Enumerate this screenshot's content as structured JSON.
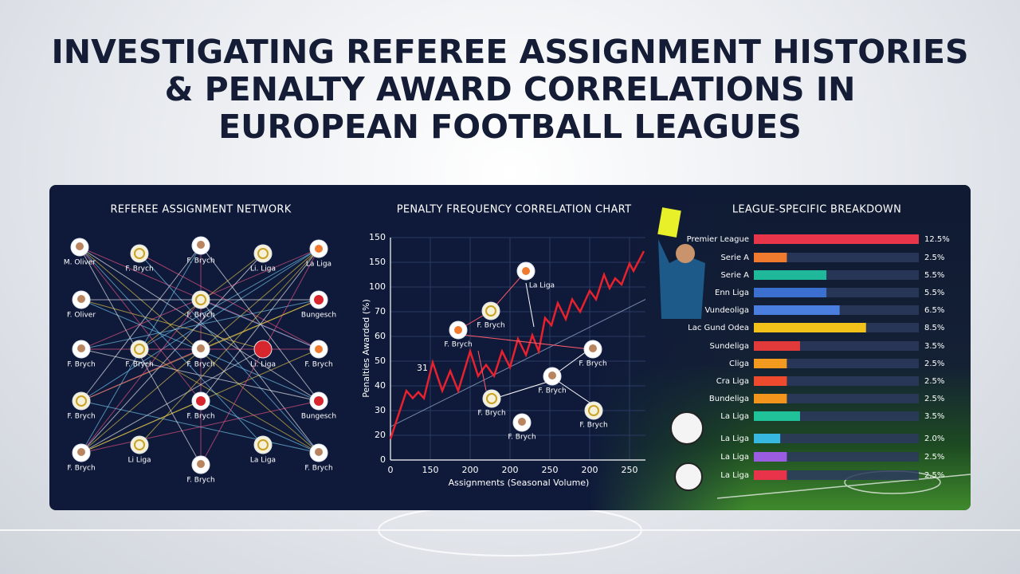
{
  "header": {
    "title": [
      "INVESTIGATING REFEREE ASSIGNMENT HISTORIES",
      "& PENALTY AWARD CORRELATIONS IN",
      "EUROPEAN FOOTBALL LEAGUES"
    ]
  },
  "network": {
    "title": "REFEREE ASSIGNMENT NETWORK",
    "nodes": [
      "M. Oliver",
      "F. Brych",
      "F. Brych",
      "Li. Liga",
      "La Liga",
      "F. Oliver",
      "F. Brych",
      "Bungesch",
      "F. Brych",
      "F. Brych",
      "F. Brych",
      "Li. Liga",
      "F. Brych",
      "F. Brych",
      "F. Brych",
      "Bungesch",
      "F. Brych",
      "Li Liga",
      "F. Brych",
      "La Liga",
      "F. Brych"
    ]
  },
  "chart_data": [
    {
      "type": "line",
      "title": "PENALTY FREQUENCY CORRELATION CHART",
      "x_label": "Assignments (Seasonal Volume)",
      "y_label": "Penalties Awarded (%)",
      "point_label": "31",
      "node_labels": [
        "La Liga",
        "F. Brych",
        "F. Brych",
        "F. Brych",
        "F. Brych",
        "F. Brych",
        "F. Brych",
        "F. Brych"
      ],
      "xlim": [
        0,
        320
      ],
      "ylim": [
        0,
        180
      ],
      "xticks": [
        0,
        {
          "value": 50,
          "label": "150"
        },
        {
          "value": 100,
          "label": "200"
        },
        {
          "value": 150,
          "label": "200"
        },
        {
          "value": 200,
          "label": "250"
        },
        {
          "value": 250,
          "label": "200"
        },
        {
          "value": 300,
          "label": "250"
        }
      ],
      "yticks": [
        0,
        20,
        {
          "value": 40,
          "label": "30"
        },
        {
          "value": 60,
          "label": "40"
        },
        {
          "value": 80,
          "label": "50"
        },
        {
          "value": 100,
          "label": "60"
        },
        {
          "value": 120,
          "label": "70"
        },
        {
          "value": 140,
          "label": "100"
        },
        {
          "value": 160,
          "label": "150"
        },
        {
          "value": 180,
          "label": "150"
        }
      ],
      "x": [
        0,
        20,
        28,
        35,
        42,
        53,
        65,
        75,
        85,
        100,
        110,
        120,
        130,
        140,
        150,
        160,
        170,
        178,
        186,
        194,
        202,
        210,
        220,
        228,
        238,
        250,
        258,
        268,
        275,
        282,
        290,
        300,
        305,
        318
      ],
      "series": [
        {
          "color": "#e8212e",
          "values": [
            17,
            56,
            50,
            55,
            50,
            79,
            56,
            72,
            56,
            88,
            68,
            77,
            68,
            88,
            75,
            98,
            85,
            101,
            88,
            115,
            109,
            127,
            114,
            130,
            120,
            137,
            130,
            150,
            139,
            147,
            142,
            159,
            153,
            169
          ]
        }
      ],
      "trend": {
        "x": [
          0,
          320
        ],
        "values": [
          27,
          130
        ],
        "color": "#9fb3d9"
      },
      "grid": true
    },
    {
      "type": "hbar",
      "title": "LEAGUE-SPECIFIC BREAKDOWN",
      "categories": [
        "Premier League",
        "Serie A",
        "Serie A",
        "Enn Liga",
        "Vundeoliga",
        "Lac Gund Odea",
        "Sundeliga",
        "Cliga",
        "Cra Liga",
        "Bundeliga",
        "La Liga",
        "La Liga",
        "La Liga",
        "La Liga"
      ],
      "values": [
        12.5,
        2.5,
        5.5,
        5.5,
        6.5,
        8.5,
        3.5,
        2.5,
        2.5,
        2.5,
        3.5,
        2.0,
        2.5,
        2.5
      ],
      "value_labels": [
        "12.5%",
        "2.5%",
        "5.5%",
        "5.5%",
        "6.5%",
        "8.5%",
        "3.5%",
        "2.5%",
        "2.5%",
        "2.5%",
        "3.5%",
        "2.0%",
        "2.5%",
        "2.5%"
      ],
      "colors": [
        "#e8354a",
        "#f07a2e",
        "#1fb89a",
        "#3b6fd0",
        "#4a7fe0",
        "#f2c21b",
        "#e23a3a",
        "#f29a1f",
        "#ee4a2e",
        "#f3941c",
        "#20c29a",
        "#36b8e0",
        "#9a5ce0",
        "#e8334a"
      ],
      "xlim": [
        0,
        12.5
      ]
    }
  ]
}
